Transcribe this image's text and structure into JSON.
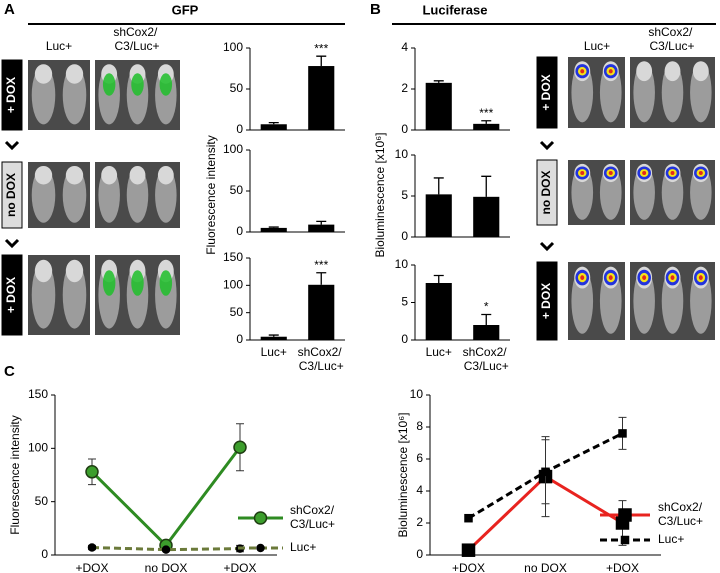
{
  "figure": {
    "panel_labels": [
      "A",
      "B",
      "C"
    ],
    "headers": [
      "GFP",
      "Luciferase"
    ],
    "image_columns": [
      "Luc+",
      "shCox2/ C3/Luc+"
    ],
    "dox_labels": [
      "+ DOX",
      "no DOX",
      "+ DOX"
    ]
  },
  "chart_data": [
    {
      "type": "bar",
      "color": "#000000",
      "values": [
        7,
        78
      ],
      "errors": [
        2,
        12
      ],
      "annotations": [
        null,
        "***"
      ],
      "ylim": [
        0,
        100
      ],
      "yticks": [
        0,
        50,
        100
      ]
    },
    {
      "type": "bar",
      "color": "#000000",
      "values": [
        5,
        9
      ],
      "errors": [
        1,
        4
      ],
      "ylim": [
        0,
        100
      ],
      "yticks": [
        0,
        50,
        100
      ],
      "ylabel": "Fluorescence intensity"
    },
    {
      "type": "bar",
      "color": "#000000",
      "categories": [
        "Luc+",
        "shCox2/ C3/Luc+"
      ],
      "values": [
        6,
        101
      ],
      "errors": [
        3,
        22
      ],
      "annotations": [
        null,
        "***"
      ],
      "ylim": [
        0,
        150
      ],
      "yticks": [
        0,
        50,
        100,
        150
      ]
    },
    {
      "type": "bar",
      "color": "#000000",
      "values": [
        2.3,
        0.3
      ],
      "errors": [
        0.1,
        0.15
      ],
      "annotations": [
        null,
        "***"
      ],
      "ylim": [
        0,
        4
      ],
      "yticks": [
        0,
        2,
        4
      ]
    },
    {
      "type": "bar",
      "color": "#000000",
      "values": [
        5.2,
        4.9
      ],
      "errors": [
        2,
        2.5
      ],
      "ylim": [
        0,
        10
      ],
      "yticks": [
        0,
        5,
        10
      ],
      "ylabel": "Bioluminescence [x10⁶]"
    },
    {
      "type": "bar",
      "color": "#000000",
      "categories": [
        "Luc+",
        "shCox2/ C3/Luc+"
      ],
      "values": [
        7.6,
        2.0
      ],
      "errors": [
        1,
        1.4
      ],
      "annotations": [
        null,
        "*"
      ],
      "ylim": [
        0,
        10
      ],
      "yticks": [
        0,
        5,
        10
      ]
    },
    {
      "type": "line",
      "ylabel": "Fluorescence intensity",
      "categories": [
        "+DOX",
        "no DOX",
        "+DOX"
      ],
      "ylim": [
        0,
        150
      ],
      "yticks": [
        0,
        50,
        100,
        150
      ],
      "series": [
        {
          "name": "shCox2/ C3/Luc+",
          "color": "#2e8b22",
          "marker": "circle",
          "marker_color": "#3c9e2c",
          "dashed": false,
          "values": [
            78,
            9,
            101
          ],
          "errors": [
            12,
            4,
            22
          ]
        },
        {
          "name": "Luc+",
          "color": "#6b7a3a",
          "marker": "circle",
          "marker_color": "#000000",
          "dashed": true,
          "values": [
            7,
            5,
            6
          ],
          "errors": [
            2,
            1,
            3
          ]
        }
      ]
    },
    {
      "type": "line",
      "ylabel": "Bioluminescence [x10⁶]",
      "categories": [
        "+DOX",
        "no DOX",
        "+DOX"
      ],
      "ylim": [
        0,
        10
      ],
      "yticks": [
        0,
        2,
        4,
        6,
        8,
        10
      ],
      "series": [
        {
          "name": "shCox2/ C3/Luc+",
          "color": "#e8231f",
          "marker": "square",
          "marker_color": "#000000",
          "dashed": false,
          "values": [
            0.3,
            4.9,
            2.0
          ],
          "errors": [
            0.15,
            2.5,
            1.4
          ]
        },
        {
          "name": "Luc+",
          "color": "#000000",
          "marker": "square",
          "marker_color": "#000000",
          "dashed": true,
          "values": [
            2.3,
            5.2,
            7.6
          ],
          "errors": [
            0.1,
            2,
            1
          ]
        }
      ]
    }
  ]
}
